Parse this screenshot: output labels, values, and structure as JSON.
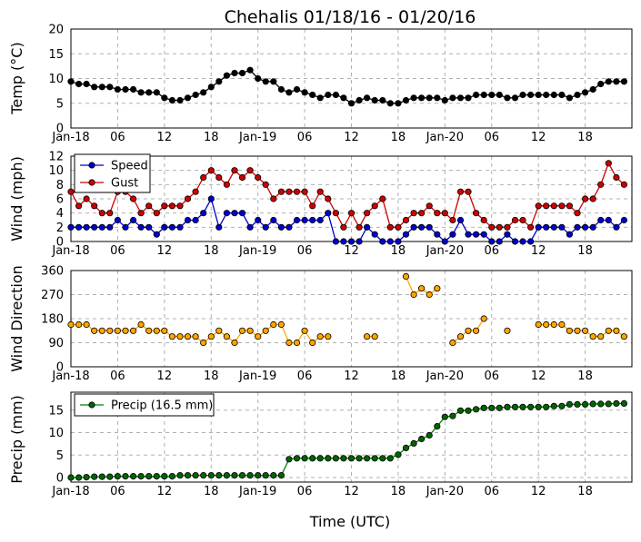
{
  "title": "Chehalis 01/18/16 - 01/20/16",
  "xlabel": "Time (UTC)",
  "x_tick_labels": [
    "Jan-18",
    "06",
    "12",
    "18",
    "Jan-19",
    "06",
    "12",
    "18",
    "Jan-20",
    "06",
    "12",
    "18"
  ],
  "colors": {
    "temp": "#000000",
    "speed": "#0000cc",
    "gust": "#cc0000",
    "direction": "#ffa500",
    "precip": "#006400",
    "precip_line": "#008000"
  },
  "chart_data": [
    {
      "type": "line",
      "ylabel": "Temp (°C)",
      "ylim": [
        0,
        20
      ],
      "yticks": [
        0,
        5,
        10,
        15,
        20
      ],
      "grid": true,
      "x_hours_start": 0,
      "x_step_hours": 1,
      "series": [
        {
          "values": [
            9.4,
            8.9,
            8.9,
            8.3,
            8.3,
            8.3,
            7.8,
            7.8,
            7.8,
            7.2,
            7.2,
            7.2,
            6.1,
            5.6,
            5.6,
            6.1,
            6.7,
            7.2,
            8.3,
            9.4,
            10.6,
            11.1,
            11.1,
            11.7,
            10.0,
            9.4,
            9.4,
            7.8,
            7.2,
            7.8,
            7.2,
            6.7,
            6.1,
            6.7,
            6.7,
            6.1,
            5.0,
            5.6,
            6.1,
            5.6,
            5.6,
            5.0,
            5.0,
            5.6,
            6.1,
            6.1,
            6.1,
            6.1,
            5.6,
            6.1,
            6.1,
            6.1,
            6.7,
            6.7,
            6.7,
            6.7,
            6.1,
            6.1,
            6.7,
            6.7,
            6.7,
            6.7,
            6.7,
            6.7,
            6.1,
            6.7,
            7.2,
            7.8,
            8.9,
            9.4,
            9.4,
            9.4
          ]
        }
      ]
    },
    {
      "type": "line",
      "ylabel": "Wind (mph)",
      "ylim": [
        0,
        12
      ],
      "yticks": [
        0,
        2,
        4,
        6,
        8,
        10,
        12
      ],
      "grid": true,
      "legend": "top-left",
      "x_hours_start": 0,
      "x_step_hours": 1,
      "series": [
        {
          "name": "Speed",
          "values": [
            2,
            2,
            2,
            2,
            2,
            2,
            3,
            2,
            3,
            2,
            2,
            1,
            2,
            2,
            2,
            3,
            3,
            4,
            6,
            2,
            4,
            4,
            4,
            2,
            3,
            2,
            3,
            2,
            2,
            3,
            3,
            3,
            3,
            4,
            0,
            0,
            0,
            0,
            2,
            1,
            0,
            0,
            0,
            1,
            2,
            2,
            2,
            1,
            0,
            1,
            3,
            1,
            1,
            1,
            0,
            0,
            1,
            0,
            0,
            0,
            2,
            2,
            2,
            2,
            1,
            2,
            2,
            2,
            3,
            3,
            2,
            3
          ]
        },
        {
          "name": "Gust",
          "values": [
            7,
            5,
            6,
            5,
            4,
            4,
            7,
            7,
            6,
            4,
            5,
            4,
            5,
            5,
            5,
            6,
            7,
            9,
            10,
            9,
            8,
            10,
            9,
            10,
            9,
            8,
            6,
            7,
            7,
            7,
            7,
            5,
            7,
            6,
            4,
            2,
            4,
            2,
            4,
            5,
            6,
            2,
            2,
            3,
            4,
            4,
            5,
            4,
            4,
            3,
            7,
            7,
            4,
            3,
            2,
            2,
            2,
            3,
            3,
            2,
            5,
            5,
            5,
            5,
            5,
            4,
            6,
            6,
            8,
            11,
            9,
            8
          ]
        }
      ]
    },
    {
      "type": "line",
      "ylabel": "Wind Direction",
      "ylim": [
        0,
        360
      ],
      "yticks": [
        0,
        90,
        180,
        270,
        360
      ],
      "grid": true,
      "x_hours_start": 0,
      "x_step_hours": 1,
      "series": [
        {
          "values": [
            158,
            158,
            158,
            135,
            135,
            135,
            135,
            135,
            135,
            158,
            135,
            135,
            135,
            113,
            113,
            113,
            113,
            90,
            113,
            135,
            113,
            90,
            135,
            135,
            113,
            135,
            158,
            158,
            90,
            90,
            135,
            90,
            113,
            113,
            null,
            null,
            null,
            null,
            113,
            113,
            null,
            null,
            null,
            338,
            270,
            293,
            270,
            293,
            null,
            90,
            113,
            135,
            135,
            180,
            null,
            null,
            135,
            null,
            null,
            null,
            158,
            158,
            158,
            158,
            135,
            135,
            135,
            113,
            113,
            135,
            135,
            113
          ]
        }
      ]
    },
    {
      "type": "line",
      "ylabel": "Precip (mm)",
      "ylim": [
        -1,
        19
      ],
      "yticks": [
        0,
        5,
        10,
        15
      ],
      "grid": true,
      "legend": "top-left",
      "x_hours_start": 0,
      "x_step_hours": 1,
      "series": [
        {
          "name": "Precip (16.5 mm)",
          "values": [
            0,
            0,
            0.1,
            0.2,
            0.2,
            0.2,
            0.3,
            0.3,
            0.3,
            0.3,
            0.3,
            0.3,
            0.3,
            0.3,
            0.5,
            0.5,
            0.5,
            0.5,
            0.5,
            0.5,
            0.5,
            0.5,
            0.5,
            0.5,
            0.5,
            0.5,
            0.5,
            0.5,
            4.1,
            4.3,
            4.3,
            4.3,
            4.3,
            4.3,
            4.3,
            4.3,
            4.3,
            4.3,
            4.3,
            4.3,
            4.3,
            4.3,
            5.1,
            6.6,
            7.6,
            8.6,
            9.4,
            11.4,
            13.5,
            13.7,
            14.9,
            14.9,
            15.2,
            15.5,
            15.5,
            15.5,
            15.7,
            15.7,
            15.7,
            15.7,
            15.7,
            15.7,
            15.9,
            15.9,
            16.3,
            16.3,
            16.3,
            16.4,
            16.4,
            16.4,
            16.5,
            16.5
          ]
        }
      ]
    }
  ]
}
